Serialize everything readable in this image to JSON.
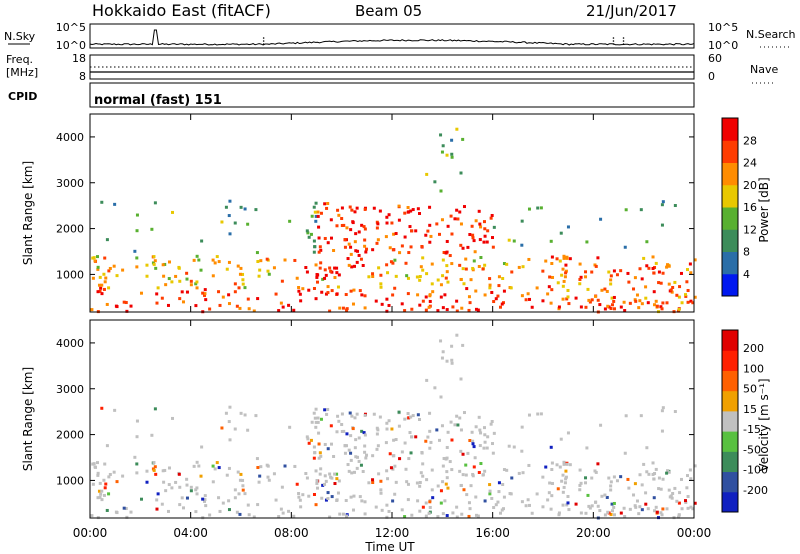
{
  "header": {
    "title": "Hokkaido East (fitACF)",
    "beam": "Beam 05",
    "date": "21/Jun/2017"
  },
  "sky_panel": {
    "label": "N.Sky",
    "left_ticks": [
      "10^5",
      "10^0"
    ],
    "right_ticks": [
      "10^5",
      "10^0"
    ],
    "right_label": "N.Search"
  },
  "freq_panel": {
    "label_line1": "Freq.",
    "label_line2": "[MHz]",
    "left_ticks": [
      "18",
      "8"
    ],
    "right_ticks": [
      "60",
      "0"
    ],
    "right_label": "Nave"
  },
  "cpid_panel": {
    "label": "CPID",
    "value": "normal (fast) 151"
  },
  "power_panel": {
    "ylabel": "Slant Range [km]",
    "yticks": [
      "4000",
      "3000",
      "2000",
      "1000"
    ],
    "colorbar_label": "Power [dB]",
    "colorbar_ticks": [
      "28",
      "24",
      "20",
      "16",
      "12",
      "8",
      "4"
    ],
    "colors": [
      "#0018f0",
      "#2a6ea8",
      "#3c8c5a",
      "#58b030",
      "#e8c800",
      "#ff8c00",
      "#ff3c00",
      "#f00000"
    ]
  },
  "velocity_panel": {
    "ylabel": "Slant Range [km]",
    "yticks": [
      "4000",
      "3000",
      "2000",
      "1000"
    ],
    "colorbar_label": "Velocity [m s⁻¹]",
    "colorbar_ticks": [
      "200",
      "100",
      "50",
      "15",
      "-15",
      "-50",
      "-100",
      "-200"
    ],
    "colors": [
      "#1020c0",
      "#3050a0",
      "#3c8c5a",
      "#58c040",
      "#c0c0c0",
      "#f0a000",
      "#ff6000",
      "#ff2000",
      "#e00000"
    ]
  },
  "xaxis": {
    "ticks": [
      "00:00",
      "04:00",
      "08:00",
      "12:00",
      "16:00",
      "20:00",
      "00:00"
    ],
    "label": "Time UT"
  },
  "chart_data": [
    {
      "type": "heatmap",
      "title": "Hokkaido East (fitACF)",
      "ylabel": "Slant Range [km]",
      "xlabel": "Time UT",
      "x_range_hours": [
        0,
        24
      ],
      "ylim": [
        180,
        4500
      ],
      "colorbar": "Power [dB]",
      "colorbar_range": [
        0,
        30
      ]
    },
    {
      "type": "heatmap",
      "ylabel": "Slant Range [km]",
      "xlabel": "Time UT",
      "x_range_hours": [
        0,
        24
      ],
      "ylim": [
        180,
        4500
      ],
      "colorbar": "Velocity [m s⁻¹]",
      "colorbar_range": [
        -250,
        250
      ]
    }
  ]
}
